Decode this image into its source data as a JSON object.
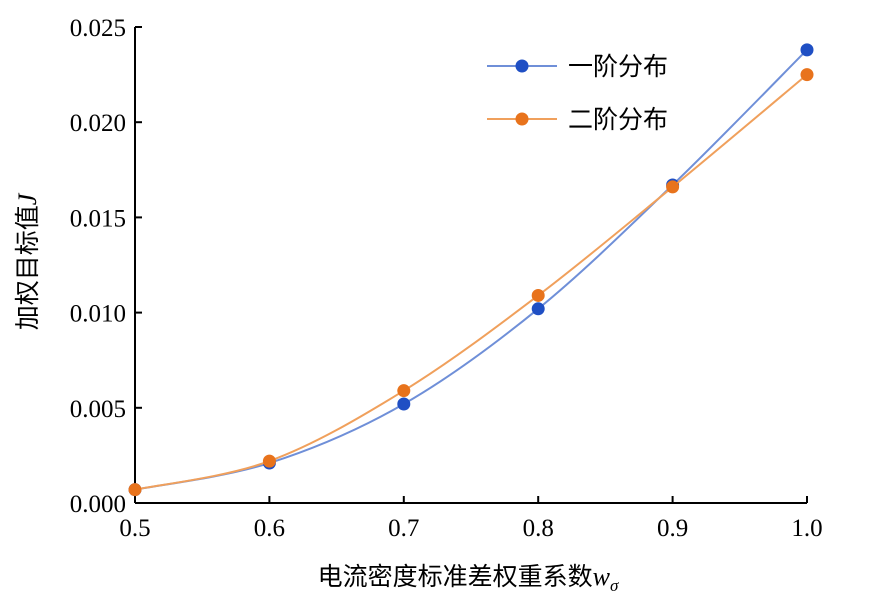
{
  "chart_data": {
    "type": "line",
    "xlabel": "电流密度标准差权重系数",
    "xlabel_var": "w",
    "xlabel_sub": "σ",
    "ylabel": "加权目标值",
    "ylabel_var": "J",
    "xlim": [
      0.5,
      1.0
    ],
    "ylim": [
      0.0,
      0.025
    ],
    "x": [
      0.5,
      0.6,
      0.7,
      0.8,
      0.9,
      1.0
    ],
    "xticks": [
      "0.5",
      "0.6",
      "0.7",
      "0.8",
      "0.9",
      "1.0"
    ],
    "yticks": [
      "0.000",
      "0.005",
      "0.010",
      "0.015",
      "0.020",
      "0.025"
    ],
    "grid": false,
    "legend_position": "top-right",
    "series": [
      {
        "name": "一阶分布",
        "color": "#1f4fc4",
        "line_color": "#6f8fd8",
        "values": [
          0.0007,
          0.0021,
          0.0052,
          0.0102,
          0.0167,
          0.0238
        ]
      },
      {
        "name": "二阶分布",
        "color": "#e8731c",
        "line_color": "#f0a05c",
        "values": [
          0.0007,
          0.0022,
          0.0059,
          0.0109,
          0.0166,
          0.0225
        ]
      }
    ]
  }
}
